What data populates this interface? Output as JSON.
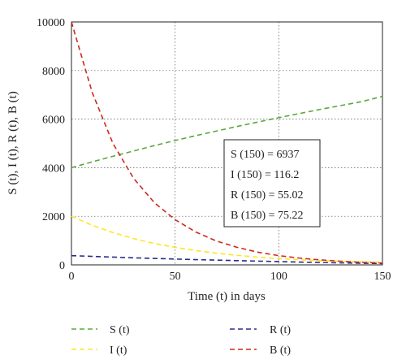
{
  "chart_data": {
    "type": "line",
    "xlabel": "Time (t) in days",
    "ylabel": "S (t), I (t), R (t), B (t)",
    "xlim": [
      0,
      150
    ],
    "ylim": [
      0,
      10000
    ],
    "x_ticks": [
      "0",
      "50",
      "100",
      "150"
    ],
    "y_ticks": [
      "0",
      "2000",
      "4000",
      "6000",
      "8000",
      "10000"
    ],
    "grid": true,
    "x": [
      0,
      10,
      20,
      30,
      40,
      50,
      60,
      70,
      80,
      90,
      100,
      110,
      120,
      130,
      140,
      150
    ],
    "series": [
      {
        "name": "S (t)",
        "color": "#5aa83c",
        "style": "dashed",
        "values": [
          4000,
          4240,
          4470,
          4690,
          4910,
          5120,
          5320,
          5510,
          5700,
          5880,
          6060,
          6230,
          6400,
          6560,
          6720,
          6937
        ]
      },
      {
        "name": "I (t)",
        "color": "#ffe61f",
        "style": "dashed",
        "values": [
          2000,
          1630,
          1330,
          1080,
          880,
          720,
          590,
          480,
          390,
          320,
          260,
          210,
          175,
          142,
          128,
          116.2
        ]
      },
      {
        "name": "R (t)",
        "color": "#2b2b8c",
        "style": "dashed",
        "values": [
          380,
          350,
          320,
          290,
          265,
          240,
          215,
          195,
          175,
          155,
          135,
          115,
          98,
          82,
          67,
          55.02
        ]
      },
      {
        "name": "B (t)",
        "color": "#cc2a1c",
        "style": "dashed",
        "values": [
          10000,
          7100,
          5000,
          3560,
          2560,
          1860,
          1350,
          980,
          720,
          520,
          380,
          280,
          205,
          150,
          105,
          75.22
        ]
      }
    ],
    "annotations": [
      "S (150) = 6937",
      "I (150) = 116.2",
      "R (150) = 55.02",
      "B (150) = 75.22"
    ],
    "legend_placement": "bottom"
  }
}
